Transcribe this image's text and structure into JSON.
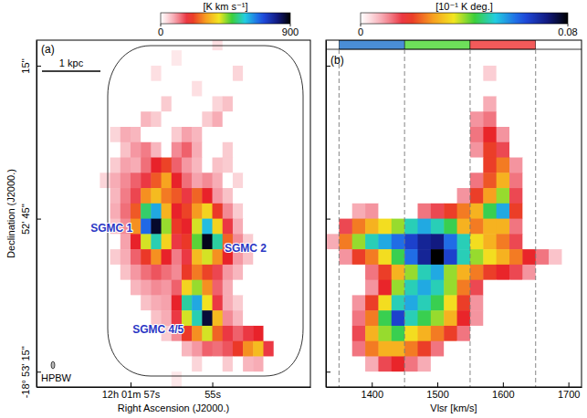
{
  "chart_data": [
    {
      "type": "heatmap",
      "panel_label": "(a)",
      "x_label": "Right Ascension (J2000.)",
      "y_label": "Declination (J2000.)",
      "xlim": [
        59.3,
        52.6
      ],
      "xticks": [
        {
          "value": 57,
          "label": "12h 01m 57s"
        },
        {
          "value": 55,
          "label": "55s"
        }
      ],
      "ylim": [
        78,
        10
      ],
      "yticks": [
        {
          "value": 15,
          "label": "15''"
        },
        {
          "value": 45,
          "label": "52' 45''"
        },
        {
          "value": 75,
          "label": "-18° 53' 15''"
        }
      ],
      "x": [
        57.875,
        57.625,
        57.375,
        57.125,
        56.875,
        56.625,
        56.375,
        56.125,
        55.875,
        55.625,
        55.375,
        55.125,
        54.875,
        54.625,
        54.375,
        54.125,
        53.875,
        53.625,
        53.375,
        53.125,
        52.875,
        52.625
      ],
      "y": [
        10.5,
        13.5,
        16.5,
        19.5,
        22.5,
        25.5,
        28.5,
        31.5,
        34.5,
        37.5,
        40.5,
        43.5,
        46.5,
        49.5,
        52.5,
        55.5,
        58.5,
        61.5,
        64.5,
        67.5,
        70.5,
        73.5,
        76.5
      ],
      "values": [
        [
          0,
          0,
          0,
          0,
          0,
          0,
          0,
          0,
          0,
          0,
          0,
          0,
          40,
          0,
          0,
          0,
          0,
          0,
          0,
          0,
          0,
          0
        ],
        [
          0,
          0,
          0,
          0,
          0,
          0,
          0,
          0,
          30,
          0,
          0,
          0,
          0,
          0,
          0,
          0,
          0,
          0,
          0,
          0,
          0,
          0
        ],
        [
          0,
          0,
          0,
          0,
          0,
          0,
          40,
          0,
          0,
          0,
          0,
          0,
          0,
          0,
          50,
          0,
          0,
          0,
          0,
          0,
          0,
          0
        ],
        [
          0,
          0,
          0,
          0,
          0,
          0,
          0,
          0,
          0,
          0,
          40,
          0,
          0,
          0,
          0,
          0,
          0,
          0,
          0,
          0,
          0,
          0
        ],
        [
          0,
          0,
          0,
          0,
          0,
          0,
          0,
          60,
          0,
          0,
          0,
          0,
          50,
          70,
          0,
          0,
          0,
          0,
          0,
          0,
          0,
          0
        ],
        [
          0,
          0,
          0,
          0,
          0,
          80,
          60,
          0,
          0,
          0,
          0,
          60,
          90,
          0,
          0,
          0,
          0,
          0,
          0,
          0,
          0,
          0
        ],
        [
          0,
          0,
          50,
          90,
          80,
          0,
          0,
          0,
          60,
          100,
          80,
          0,
          0,
          0,
          0,
          0,
          0,
          0,
          0,
          0,
          0,
          0
        ],
        [
          0,
          0,
          0,
          70,
          110,
          130,
          80,
          0,
          120,
          150,
          90,
          0,
          0,
          60,
          0,
          0,
          0,
          0,
          0,
          0,
          0,
          0
        ],
        [
          0,
          0,
          60,
          100,
          90,
          140,
          200,
          230,
          150,
          110,
          80,
          0,
          70,
          60,
          0,
          0,
          0,
          0,
          0,
          0,
          0,
          0
        ],
        [
          0,
          50,
          90,
          120,
          150,
          180,
          250,
          320,
          200,
          140,
          100,
          120,
          90,
          0,
          50,
          0,
          0,
          0,
          0,
          0,
          0,
          0
        ],
        [
          0,
          0,
          80,
          130,
          170,
          300,
          350,
          280,
          250,
          180,
          260,
          200,
          110,
          70,
          0,
          0,
          0,
          0,
          0,
          0,
          0,
          0
        ],
        [
          0,
          0,
          90,
          140,
          250,
          520,
          620,
          340,
          200,
          230,
          310,
          380,
          220,
          120,
          60,
          0,
          0,
          0,
          0,
          0,
          0,
          0
        ],
        [
          0,
          0,
          70,
          120,
          300,
          680,
          870,
          450,
          220,
          200,
          420,
          600,
          380,
          180,
          90,
          0,
          0,
          0,
          0,
          0,
          0,
          0
        ],
        [
          0,
          0,
          0,
          100,
          200,
          420,
          560,
          380,
          180,
          220,
          480,
          880,
          550,
          260,
          120,
          60,
          0,
          0,
          0,
          0,
          0,
          0
        ],
        [
          0,
          0,
          60,
          90,
          150,
          220,
          300,
          200,
          130,
          180,
          350,
          420,
          300,
          200,
          110,
          70,
          0,
          0,
          0,
          0,
          0,
          0
        ],
        [
          0,
          0,
          0,
          70,
          110,
          140,
          160,
          140,
          120,
          220,
          280,
          230,
          170,
          110,
          80,
          0,
          0,
          0,
          0,
          0,
          0,
          0
        ],
        [
          0,
          0,
          0,
          0,
          80,
          100,
          120,
          110,
          150,
          380,
          450,
          300,
          150,
          90,
          0,
          0,
          0,
          0,
          0,
          0,
          0,
          0
        ],
        [
          0,
          0,
          0,
          0,
          0,
          70,
          90,
          100,
          200,
          550,
          620,
          400,
          180,
          90,
          60,
          0,
          0,
          0,
          0,
          0,
          0,
          0
        ],
        [
          0,
          0,
          0,
          0,
          0,
          0,
          70,
          90,
          180,
          420,
          560,
          860,
          350,
          120,
          80,
          0,
          0,
          0,
          0,
          0,
          0,
          0
        ],
        [
          0,
          0,
          0,
          0,
          0,
          0,
          0,
          60,
          120,
          220,
          300,
          420,
          260,
          180,
          150,
          180,
          200,
          0,
          0,
          0,
          0,
          0
        ],
        [
          0,
          0,
          0,
          0,
          0,
          0,
          0,
          0,
          0,
          80,
          110,
          150,
          140,
          160,
          220,
          300,
          350,
          180,
          0,
          0,
          0,
          0
        ],
        [
          0,
          0,
          0,
          0,
          0,
          0,
          0,
          0,
          0,
          0,
          50,
          0,
          0,
          60,
          0,
          80,
          90,
          0,
          0,
          0,
          0,
          0
        ],
        [
          0,
          0,
          0,
          0,
          0,
          0,
          0,
          0,
          30,
          0,
          0,
          0,
          0,
          0,
          0,
          0,
          0,
          0,
          0,
          0,
          0,
          0
        ]
      ],
      "colorbar": {
        "label": "[K km s⁻¹]",
        "range": [
          0,
          900
        ],
        "ticks": [
          0,
          900
        ]
      },
      "annotations": [
        "SGMC 1",
        "SGMC 2",
        "SGMC 4/5"
      ],
      "scale_bar": "1 kpc",
      "beam": "HPBW"
    },
    {
      "type": "heatmap",
      "panel_label": "(b)",
      "x_label": "Vlsr [km/s]",
      "xlim": [
        1330,
        1720
      ],
      "xticks": [
        1400,
        1500,
        1600,
        1700
      ],
      "ylim": [
        78,
        10
      ],
      "yticks": [
        15,
        45,
        75
      ],
      "tick_labels": "x",
      "x": [
        1340,
        1360,
        1380,
        1400,
        1420,
        1440,
        1460,
        1480,
        1500,
        1520,
        1540,
        1560,
        1580,
        1600,
        1620,
        1640,
        1660,
        1680,
        1700
      ],
      "y": [
        10.5,
        13.5,
        16.5,
        19.5,
        22.5,
        25.5,
        28.5,
        31.5,
        34.5,
        37.5,
        40.5,
        43.5,
        46.5,
        49.5,
        52.5,
        55.5,
        58.5,
        61.5,
        64.5,
        67.5,
        70.5,
        73.5,
        76.5
      ],
      "values": [
        [
          0,
          0,
          0,
          0,
          0,
          0,
          0,
          0,
          0,
          0,
          0,
          0,
          0,
          0,
          0,
          0,
          0,
          0,
          0
        ],
        [
          0,
          0,
          0,
          0,
          0,
          0,
          0,
          0,
          0,
          0,
          0,
          0,
          0,
          0,
          0,
          0,
          0,
          0,
          0
        ],
        [
          0,
          0,
          0,
          0,
          0,
          0,
          0,
          0,
          0,
          0,
          0,
          0,
          0.005,
          0,
          0,
          0,
          0,
          0,
          0
        ],
        [
          0,
          0,
          0,
          0,
          0,
          0,
          0,
          0,
          0,
          0,
          0,
          0,
          0,
          0,
          0,
          0,
          0,
          0,
          0
        ],
        [
          0,
          0,
          0,
          0,
          0,
          0,
          0,
          0,
          0,
          0,
          0,
          0,
          0.008,
          0,
          0,
          0,
          0,
          0,
          0
        ],
        [
          0,
          0,
          0,
          0,
          0,
          0,
          0,
          0,
          0,
          0,
          0,
          0.01,
          0.012,
          0,
          0,
          0,
          0,
          0,
          0
        ],
        [
          0,
          0,
          0,
          0,
          0,
          0,
          0,
          0,
          0,
          0,
          0,
          0.012,
          0.018,
          0.01,
          0,
          0,
          0,
          0,
          0
        ],
        [
          0,
          0,
          0,
          0,
          0,
          0,
          0,
          0,
          0,
          0,
          0,
          0.01,
          0.02,
          0.015,
          0,
          0,
          0,
          0,
          0
        ],
        [
          0,
          0,
          0,
          0,
          0,
          0,
          0,
          0,
          0,
          0,
          0,
          0,
          0.02,
          0.025,
          0.01,
          0,
          0,
          0,
          0
        ],
        [
          0,
          0,
          0,
          0,
          0,
          0,
          0,
          0,
          0,
          0,
          0,
          0.012,
          0.022,
          0.03,
          0.012,
          0,
          0,
          0,
          0
        ],
        [
          0,
          0,
          0,
          0,
          0,
          0,
          0,
          0,
          0,
          0,
          0.01,
          0.02,
          0.028,
          0.04,
          0.015,
          0,
          0,
          0,
          0
        ],
        [
          0,
          0,
          0.008,
          0.01,
          0,
          0,
          0,
          0.012,
          0.015,
          0.02,
          0.025,
          0.03,
          0.045,
          0.055,
          0.02,
          0,
          0,
          0,
          0
        ],
        [
          0,
          0.015,
          0.025,
          0.03,
          0.035,
          0.04,
          0.05,
          0.055,
          0.05,
          0.045,
          0.03,
          0.025,
          0.03,
          0.03,
          0.012,
          0,
          0,
          0,
          0
        ],
        [
          0.008,
          0.025,
          0.04,
          0.05,
          0.055,
          0.06,
          0.065,
          0.07,
          0.072,
          0.06,
          0.05,
          0.035,
          0.03,
          0.025,
          0.015,
          0,
          0,
          0,
          0
        ],
        [
          0,
          0.01,
          0.02,
          0.025,
          0.035,
          0.045,
          0.06,
          0.07,
          0.08,
          0.065,
          0.05,
          0.04,
          0.035,
          0.03,
          0.025,
          0.018,
          0.012,
          0.006,
          0
        ],
        [
          0,
          0,
          0,
          0.012,
          0.02,
          0.03,
          0.04,
          0.05,
          0.055,
          0.04,
          0.03,
          0.025,
          0.02,
          0.018,
          0.015,
          0.01,
          0,
          0,
          0
        ],
        [
          0,
          0,
          0,
          0.01,
          0.018,
          0.04,
          0.05,
          0.055,
          0.05,
          0.04,
          0.025,
          0.015,
          0,
          0,
          0,
          0,
          0,
          0,
          0
        ],
        [
          0,
          0,
          0.01,
          0.02,
          0.035,
          0.05,
          0.055,
          0.05,
          0.045,
          0.035,
          0.02,
          0.01,
          0,
          0,
          0,
          0,
          0,
          0,
          0
        ],
        [
          0,
          0,
          0.012,
          0.025,
          0.045,
          0.065,
          0.05,
          0.045,
          0.04,
          0.03,
          0.018,
          0.01,
          0,
          0,
          0,
          0,
          0,
          0,
          0
        ],
        [
          0,
          0,
          0.015,
          0.03,
          0.04,
          0.045,
          0.035,
          0.03,
          0.025,
          0.02,
          0.012,
          0,
          0,
          0,
          0,
          0,
          0,
          0,
          0
        ],
        [
          0,
          0,
          0.012,
          0.025,
          0.03,
          0.03,
          0.025,
          0.02,
          0.012,
          0,
          0,
          0,
          0,
          0,
          0,
          0,
          0,
          0,
          0
        ],
        [
          0,
          0,
          0,
          0.008,
          0.015,
          0.018,
          0.012,
          0.008,
          0,
          0,
          0,
          0,
          0,
          0,
          0,
          0,
          0,
          0,
          0
        ],
        [
          0,
          0,
          0,
          0,
          0,
          0,
          0,
          0,
          0,
          0,
          0,
          0,
          0,
          0,
          0,
          0,
          0,
          0,
          0
        ]
      ],
      "colorbar": {
        "label": "[10⁻¹ K deg.]",
        "range": [
          0,
          0.08
        ],
        "ticks": [
          0,
          0.08
        ]
      },
      "velocity_ranges": {
        "edges": [
          1350,
          1450,
          1550,
          1650
        ],
        "colors": [
          "#4a8ed6",
          "#6ee05a",
          "#f25a5a"
        ]
      }
    }
  ]
}
